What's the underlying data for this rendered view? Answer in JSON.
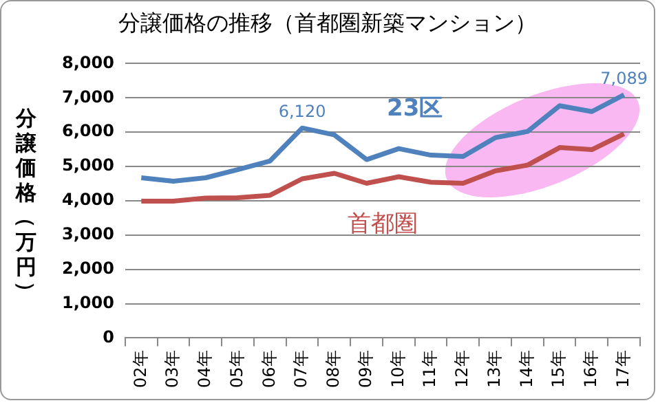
{
  "chart_data": {
    "type": "line",
    "title": "分譲価格の推移（首都圏新築マンション）",
    "ylabel": "分譲価格（万円）",
    "categories": [
      "02年",
      "03年",
      "04年",
      "05年",
      "06年",
      "07年",
      "08年",
      "09年",
      "10年",
      "11年",
      "12年",
      "13年",
      "14年",
      "15年",
      "16年",
      "17年"
    ],
    "series": [
      {
        "name": "23区",
        "color": "#4f81bd",
        "values": [
          4670,
          4570,
          4670,
          4910,
          5160,
          6120,
          5920,
          5200,
          5520,
          5330,
          5290,
          5840,
          6020,
          6770,
          6600,
          7089
        ],
        "value_labels": [
          null,
          null,
          null,
          null,
          null,
          "6,120",
          null,
          null,
          null,
          null,
          null,
          null,
          null,
          null,
          null,
          "7,089"
        ]
      },
      {
        "name": "首都圏",
        "color": "#c0504d",
        "values": [
          3990,
          3990,
          4080,
          4090,
          4160,
          4640,
          4800,
          4510,
          4700,
          4540,
          4510,
          4870,
          5040,
          5550,
          5490,
          5950
        ]
      }
    ],
    "ylim": [
      0,
      8000
    ],
    "yticks": [
      0,
      {
        "value": 1000,
        "label": "1,000"
      },
      {
        "value": 2000,
        "label": "2,000"
      },
      {
        "value": 3000,
        "label": "3,000"
      },
      {
        "value": 4000,
        "label": "4,000"
      },
      {
        "value": 5000,
        "label": "5,000"
      },
      {
        "value": 6000,
        "label": "6,000"
      },
      {
        "value": 7000,
        "label": "7,000"
      },
      {
        "value": 8000,
        "label": "8,000"
      }
    ],
    "grid": "y",
    "legend": false,
    "marker": "none",
    "line_style": "solid"
  }
}
